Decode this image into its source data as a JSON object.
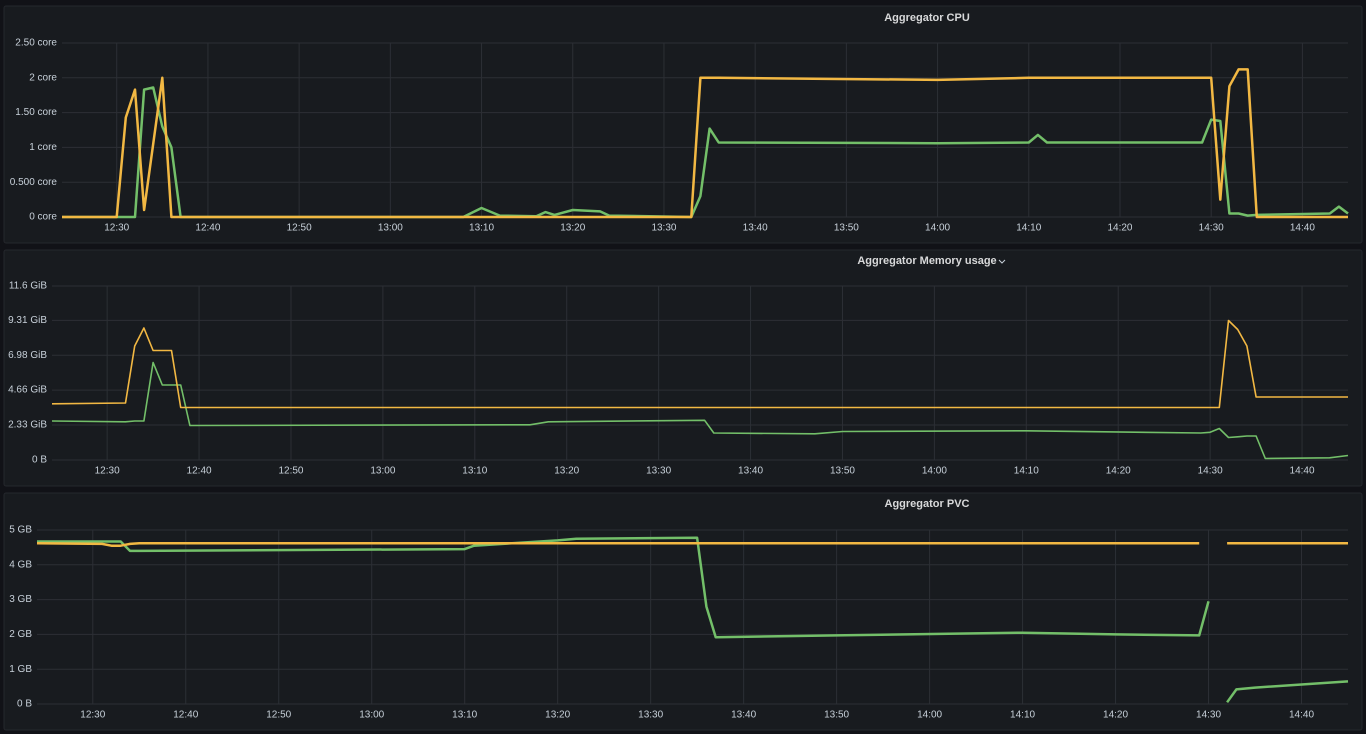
{
  "chart_data": [
    {
      "type": "line",
      "title": "Aggregator CPU",
      "x": [
        "12:24",
        "12:29",
        "12:30",
        "12:31",
        "12:32",
        "12:33",
        "12:34",
        "12:35",
        "12:36",
        "12:37",
        "13:08",
        "13:10",
        "13:12",
        "13:16",
        "13:17",
        "13:18",
        "13:20",
        "13:23",
        "13:24",
        "13:33",
        "13:34",
        "13:35",
        "13:36",
        "14:00",
        "14:10",
        "14:11",
        "14:12",
        "14:29",
        "14:30",
        "14:31",
        "14:32",
        "14:33",
        "14:34",
        "14:35",
        "14:43",
        "14:44",
        "14:45"
      ],
      "series": [
        {
          "color": "#73bf69",
          "values": [
            0,
            0,
            0,
            0,
            0,
            1.83,
            1.86,
            1.3,
            1.0,
            0,
            0,
            0.13,
            0.02,
            0.01,
            0.07,
            0.03,
            0.1,
            0.08,
            0.02,
            0,
            0.3,
            1.27,
            1.07,
            1.06,
            1.07,
            1.18,
            1.07,
            1.07,
            1.4,
            1.38,
            0.05,
            0.05,
            0.02,
            0.03,
            0.05,
            0.15,
            0.05
          ]
        },
        {
          "color": "#f2b843",
          "values": [
            0,
            0,
            0,
            1.43,
            1.83,
            0.1,
            1.05,
            2.0,
            0,
            0,
            0,
            0,
            0,
            0,
            0,
            0,
            0,
            0,
            0,
            0,
            2.0,
            2.0,
            2.0,
            1.97,
            2.0,
            2.0,
            2.0,
            2.0,
            2.0,
            0.25,
            1.88,
            2.12,
            2.12,
            0,
            0,
            0,
            0
          ]
        }
      ],
      "xlim": [
        "12:24",
        "14:45"
      ],
      "xticks": [
        "12:30",
        "12:40",
        "12:50",
        "13:00",
        "13:10",
        "13:20",
        "13:30",
        "13:40",
        "13:50",
        "14:00",
        "14:10",
        "14:20",
        "14:30",
        "14:40"
      ],
      "ylim": [
        0,
        2.5
      ],
      "yticks": [
        {
          "value": 0,
          "label": "0 core"
        },
        {
          "value": 0.5,
          "label": "0.500 core"
        },
        {
          "value": 1,
          "label": "1 core"
        },
        {
          "value": 1.5,
          "label": "1.50 core"
        },
        {
          "value": 2,
          "label": "2 core"
        },
        {
          "value": 2.5,
          "label": "2.50 core"
        }
      ],
      "grid": true
    },
    {
      "type": "line",
      "title": "Aggregator Memory usage",
      "x": [
        "12:24",
        "12:32",
        "12:33",
        "12:34",
        "12:35",
        "12:36",
        "12:37",
        "12:38",
        "12:39",
        "13:16",
        "13:18",
        "13:35",
        "13:36",
        "13:47",
        "13:50",
        "14:10",
        "14:29",
        "14:30",
        "14:31",
        "14:32",
        "14:33",
        "14:34",
        "14:35",
        "14:36",
        "14:43",
        "14:45"
      ],
      "series": [
        {
          "color": "#73bf69",
          "values": [
            2.6,
            2.55,
            2.6,
            2.6,
            6.5,
            5.0,
            5.0,
            5.0,
            2.3,
            2.35,
            2.55,
            2.65,
            1.8,
            1.75,
            1.9,
            1.95,
            1.8,
            1.85,
            2.1,
            1.5,
            1.55,
            1.6,
            1.6,
            0.1,
            0.15,
            0.3
          ]
        },
        {
          "color": "#f2b843",
          "values": [
            3.75,
            3.8,
            7.6,
            8.8,
            7.3,
            7.3,
            7.3,
            3.5,
            3.5,
            3.5,
            3.5,
            3.5,
            3.5,
            3.5,
            3.5,
            3.5,
            3.5,
            3.5,
            3.5,
            9.3,
            8.7,
            7.6,
            4.2,
            4.2,
            4.2,
            4.2
          ]
        }
      ],
      "xlim": [
        "12:24",
        "14:45"
      ],
      "xticks": [
        "12:30",
        "12:40",
        "12:50",
        "13:00",
        "13:10",
        "13:20",
        "13:30",
        "13:40",
        "13:50",
        "14:00",
        "14:10",
        "14:20",
        "14:30",
        "14:40"
      ],
      "ylim": [
        0,
        11.6
      ],
      "yticks": [
        {
          "value": 0,
          "label": "0 B"
        },
        {
          "value": 2.33,
          "label": "2.33 GiB"
        },
        {
          "value": 4.66,
          "label": "4.66 GiB"
        },
        {
          "value": 6.98,
          "label": "6.98 GiB"
        },
        {
          "value": 9.31,
          "label": "9.31 GiB"
        },
        {
          "value": 11.6,
          "label": "11.6 GiB"
        }
      ],
      "grid": true
    },
    {
      "type": "line",
      "title": "Aggregator PVC",
      "x": [
        "12:24",
        "12:31",
        "12:32",
        "12:33",
        "12:34",
        "12:35",
        "13:10",
        "13:11",
        "13:20",
        "13:22",
        "13:35",
        "13:36",
        "13:37",
        "13:50",
        "14:10",
        "14:20",
        "14:29",
        "14:30",
        "14:31",
        "14:32",
        "14:33",
        "14:35",
        "14:45"
      ],
      "series": [
        {
          "color": "#73bf69",
          "values": [
            4.67,
            4.67,
            4.67,
            4.67,
            4.4,
            4.4,
            4.45,
            4.55,
            4.7,
            4.75,
            4.78,
            2.8,
            1.92,
            1.97,
            2.05,
            2.0,
            1.97,
            2.95,
            null,
            0.05,
            0.42,
            0.47,
            0.65
          ]
        },
        {
          "color": "#f2b843",
          "values": [
            4.62,
            4.6,
            4.55,
            4.55,
            4.6,
            4.62,
            4.62,
            4.62,
            4.62,
            4.62,
            4.62,
            4.62,
            4.62,
            4.62,
            4.62,
            4.62,
            4.62,
            null,
            null,
            4.62,
            4.62,
            4.62,
            4.62
          ]
        }
      ],
      "xlim": [
        "12:24",
        "14:45"
      ],
      "xticks": [
        "12:30",
        "12:40",
        "12:50",
        "13:00",
        "13:10",
        "13:20",
        "13:30",
        "13:40",
        "13:50",
        "14:00",
        "14:10",
        "14:20",
        "14:30",
        "14:40"
      ],
      "ylim": [
        0,
        5
      ],
      "yticks": [
        {
          "value": 0,
          "label": "0 B"
        },
        {
          "value": 1,
          "label": "1 GB"
        },
        {
          "value": 2,
          "label": "2 GB"
        },
        {
          "value": 3,
          "label": "3 GB"
        },
        {
          "value": 4,
          "label": "4 GB"
        },
        {
          "value": 5,
          "label": "5 GB"
        }
      ],
      "grid": true
    }
  ]
}
